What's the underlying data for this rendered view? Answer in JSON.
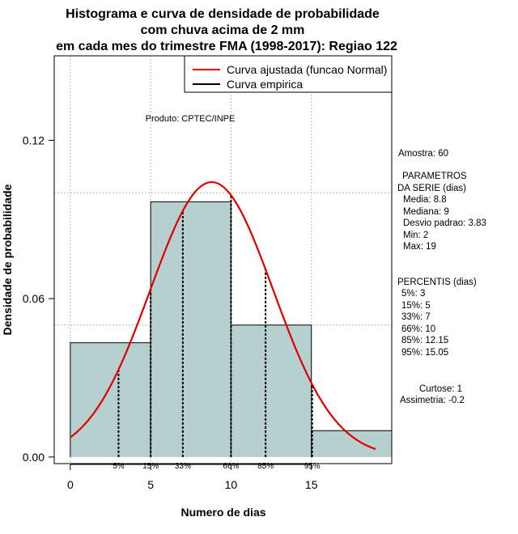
{
  "chart_data": {
    "type": "histogram",
    "title_lines": [
      "Histograma e curva de densidade de probabilidade",
      "com chuva acima de 2 mm",
      "em cada mes do trimestre FMA (1998-2017): Regiao 122"
    ],
    "xlabel": "Numero de dias",
    "ylabel": "Densidade de probabilidade",
    "xlim": [
      -1,
      20
    ],
    "ylim": [
      -0.0025,
      0.152
    ],
    "x_ticks": [
      0,
      5,
      10,
      15
    ],
    "x_tick_labels": [
      "0",
      "5",
      "10",
      "15"
    ],
    "y_ticks": [
      0.0,
      0.06,
      0.12
    ],
    "y_tick_labels": [
      "0.00",
      "0.06",
      "0.12"
    ],
    "grid": true,
    "grid_x": [
      0,
      5,
      10,
      15
    ],
    "grid_y": [
      0.05,
      0.1
    ],
    "bins": [
      {
        "x0": 0,
        "x1": 5,
        "density": 0.0433
      },
      {
        "x0": 5,
        "x1": 10,
        "density": 0.0967
      },
      {
        "x0": 10,
        "x1": 15,
        "density": 0.05
      },
      {
        "x0": 15,
        "x1": 20,
        "density": 0.01
      }
    ],
    "bar_color": "#b6cfcf",
    "normal_curve": {
      "mean": 8.8,
      "sd": 3.83,
      "x_from": 0,
      "x_to": 19,
      "color": "#e00000"
    },
    "percentile_lines": [
      {
        "label": "5%",
        "x": 3
      },
      {
        "label": "15%",
        "x": 5
      },
      {
        "label": "33%",
        "x": 7
      },
      {
        "label": "66%",
        "x": 10
      },
      {
        "label": "85%",
        "x": 12.15
      },
      {
        "label": "95%",
        "x": 15.05
      }
    ],
    "legend": {
      "position": "top-right",
      "entries": [
        {
          "label": "Curva ajustada (funcao Normal)",
          "color": "#e00000"
        },
        {
          "label": "Curva empirica",
          "color": "#000000"
        }
      ]
    },
    "annotation": "Produto: CPTEC/INPE"
  },
  "stats": {
    "sample": "Amostra: 60",
    "params_title_1": "PARAMETROS",
    "params_title_2": "DA SERIE (dias)",
    "params": [
      "Media: 8.8",
      "Mediana: 9",
      "Desvio padrao: 3.83",
      "Min: 2",
      "Max: 19"
    ],
    "percentiles_title": "PERCENTIS (dias)",
    "percentiles": [
      "5%: 3",
      "15%: 5",
      "33%: 7",
      "66%: 10",
      "85%: 12.15",
      "95%: 15.05"
    ],
    "kurtosis": "Curtose: 1",
    "skewness": "Assimetria: -0.2"
  }
}
